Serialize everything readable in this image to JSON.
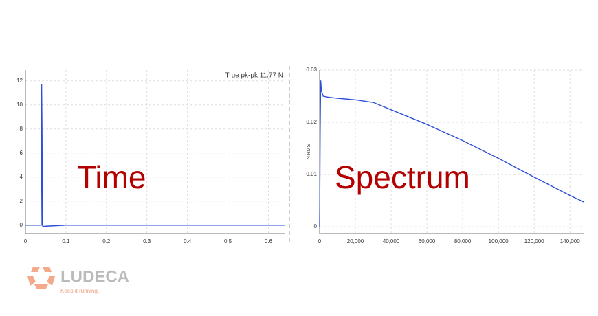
{
  "chart_data": [
    {
      "type": "line",
      "overlay_label": "Time",
      "annotation": "True pk-pk 11.77 N",
      "x": [
        0,
        0.039,
        0.04,
        0.041,
        0.042,
        0.043,
        0.045,
        0.1,
        0.2,
        0.3,
        0.4,
        0.5,
        0.6,
        0.64
      ],
      "series": [
        {
          "color": "#2b4fd8",
          "values": [
            0,
            0,
            11.7,
            7.8,
            0,
            -0.1,
            -0.1,
            0,
            0,
            0,
            0,
            0,
            0,
            0
          ]
        }
      ],
      "xlim": [
        0,
        0.64
      ],
      "xticks": [
        0,
        0.1,
        0.2,
        0.3,
        0.4,
        0.5,
        0.6
      ],
      "ylim": [
        -0.7,
        12.9
      ],
      "yticks": [
        0,
        2,
        4,
        6,
        8,
        10,
        12
      ],
      "grid": true
    },
    {
      "type": "line",
      "overlay_label": "Spectrum",
      "ylabel": "N RMS",
      "x": [
        0,
        300,
        600,
        1000,
        2000,
        5000,
        10000,
        20000,
        30000,
        40000,
        60000,
        80000,
        100000,
        120000,
        140000,
        148000
      ],
      "series": [
        {
          "color": "#2b4fd8",
          "values": [
            0,
            0.018,
            0.028,
            0.026,
            0.025,
            0.0248,
            0.0246,
            0.0243,
            0.0238,
            0.0224,
            0.0196,
            0.0165,
            0.0131,
            0.0095,
            0.006,
            0.0047
          ]
        }
      ],
      "xlim": [
        0,
        148000
      ],
      "xticks": [
        0,
        {
          "value": 20000,
          "label": "20,000"
        },
        {
          "value": 40000,
          "label": "40,000"
        },
        {
          "value": 60000,
          "label": "60,000"
        },
        {
          "value": 80000,
          "label": "80,000"
        },
        {
          "value": 100000,
          "label": "100,000"
        },
        {
          "value": 120000,
          "label": "120,000"
        },
        {
          "value": 140000,
          "label": "140,000"
        }
      ],
      "ylim": [
        -0.0013,
        0.03
      ],
      "yticks": [
        0,
        0.01,
        0.02,
        0.03
      ],
      "grid": true
    }
  ],
  "logo": {
    "name": "LUDECA",
    "tagline": "Keep it running."
  }
}
